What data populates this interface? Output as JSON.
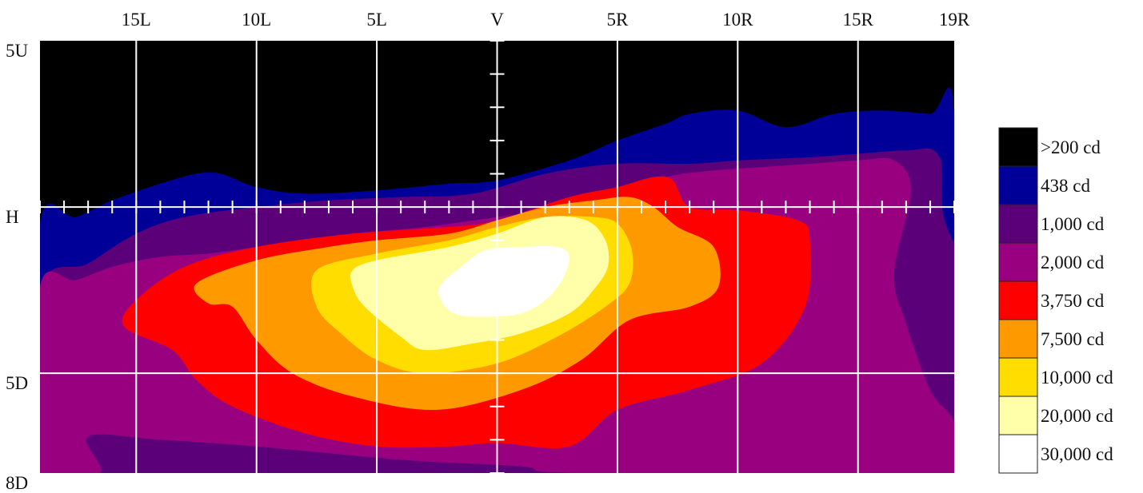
{
  "chart_data": {
    "type": "heatmap",
    "title": "",
    "x_axis": {
      "range": [
        -19,
        19
      ],
      "ticks": [
        {
          "value": -15,
          "label": "15L"
        },
        {
          "value": -10,
          "label": "10L"
        },
        {
          "value": -5,
          "label": "5L"
        },
        {
          "value": 0,
          "label": "V"
        },
        {
          "value": 5,
          "label": "5R"
        },
        {
          "value": 10,
          "label": "10R"
        },
        {
          "value": 15,
          "label": "15R"
        },
        {
          "value": 19,
          "label": "19R"
        }
      ]
    },
    "y_axis": {
      "range": [
        -8,
        5
      ],
      "ticks": [
        {
          "value": 5,
          "label": "5U"
        },
        {
          "value": 0,
          "label": "H"
        },
        {
          "value": -5,
          "label": "5D"
        },
        {
          "value": -8,
          "label": "8D"
        }
      ]
    },
    "grid": true,
    "legend": {
      "placement": "right",
      "entries": [
        {
          "label": ">200 cd",
          "color": "#000000"
        },
        {
          "label": "438 cd",
          "color": "#000099"
        },
        {
          "label": "1,000 cd",
          "color": "#5c007a"
        },
        {
          "label": "2,000 cd",
          "color": "#990080"
        },
        {
          "label": "3,750 cd",
          "color": "#ff0000"
        },
        {
          "label": "7,500 cd",
          "color": "#ff9900"
        },
        {
          "label": "10,000 cd",
          "color": "#ffdd00"
        },
        {
          "label": "20,000 cd",
          "color": "#ffffaa"
        },
        {
          "label": "30,000 cd",
          "color": "#ffffff"
        }
      ]
    },
    "contours": [
      {
        "level": ">200 cd",
        "points": [
          [
            -19,
            5
          ],
          [
            19,
            5
          ],
          [
            19,
            -8
          ],
          [
            -19,
            -8
          ]
        ]
      },
      {
        "level": "438 cd",
        "points": [
          [
            -19,
            -0.5
          ],
          [
            -17.5,
            -0.3
          ],
          [
            -16,
            0.2
          ],
          [
            -14,
            0.7
          ],
          [
            -12.5,
            1.0
          ],
          [
            -11.5,
            1.0
          ],
          [
            -10,
            0.6
          ],
          [
            -8,
            0.4
          ],
          [
            -5,
            0.5
          ],
          [
            -2,
            0.7
          ],
          [
            0,
            0.8
          ],
          [
            3,
            1.4
          ],
          [
            5,
            2.0
          ],
          [
            7,
            2.5
          ],
          [
            8,
            2.8
          ],
          [
            10,
            2.9
          ],
          [
            12,
            2.4
          ],
          [
            14,
            2.8
          ],
          [
            16,
            2.9
          ],
          [
            18,
            2.8
          ],
          [
            19,
            2.8
          ],
          [
            19,
            -8
          ],
          [
            -19,
            -8
          ]
        ]
      },
      {
        "level": "1,000 cd",
        "points": [
          [
            -19,
            -2.5
          ],
          [
            -17,
            -1.7
          ],
          [
            -15,
            -0.8
          ],
          [
            -13,
            -0.3
          ],
          [
            -10,
            0
          ],
          [
            -7,
            0.2
          ],
          [
            -4,
            0.3
          ],
          [
            -1,
            0.4
          ],
          [
            2,
            1.0
          ],
          [
            5,
            1.3
          ],
          [
            8,
            1.3
          ],
          [
            10,
            1.4
          ],
          [
            13,
            1.5
          ],
          [
            15,
            1.6
          ],
          [
            17,
            1.7
          ],
          [
            18.3,
            1.6
          ],
          [
            18.5,
            0
          ],
          [
            18.6,
            -8
          ],
          [
            -19,
            -8
          ]
        ]
      },
      {
        "level": "2,000 cd",
        "points": [
          [
            -19,
            -2.4
          ],
          [
            -17.5,
            -2.2
          ],
          [
            -16,
            -1.8
          ],
          [
            -14,
            -1.5
          ],
          [
            -12,
            -1.4
          ],
          [
            -10,
            -1.2
          ],
          [
            -8,
            -1.0
          ],
          [
            -6,
            -0.8
          ],
          [
            -3,
            -0.6
          ],
          [
            0,
            -0.3
          ],
          [
            3,
            0
          ],
          [
            5,
            0.4
          ],
          [
            7,
            0.9
          ],
          [
            9,
            1.1
          ],
          [
            11,
            1.2
          ],
          [
            13,
            1.3
          ],
          [
            15,
            1.4
          ],
          [
            16.5,
            1.4
          ],
          [
            17.2,
            0.5
          ],
          [
            16.5,
            -2.0
          ],
          [
            17,
            -3.5
          ],
          [
            18,
            -5.5
          ],
          [
            19,
            -6.5
          ],
          [
            19,
            -8
          ],
          [
            3.5,
            -8
          ],
          [
            1,
            -7.8
          ],
          [
            -4,
            -7.6
          ],
          [
            -10,
            -7.2
          ],
          [
            -14,
            -7.0
          ],
          [
            -17,
            -6.9
          ],
          [
            -16.5,
            -8
          ],
          [
            -19,
            -8
          ]
        ]
      },
      {
        "level": "3,750 cd",
        "points": [
          [
            -15.5,
            -3.6
          ],
          [
            -15,
            -2.8
          ],
          [
            -13,
            -1.8
          ],
          [
            -10,
            -1.2
          ],
          [
            -6,
            -0.8
          ],
          [
            -2,
            -0.6
          ],
          [
            0,
            -0.4
          ],
          [
            3,
            0.3
          ],
          [
            5,
            0.6
          ],
          [
            6.5,
            0.9
          ],
          [
            7.3,
            0.8
          ],
          [
            8,
            0
          ],
          [
            10,
            -0.1
          ],
          [
            12.5,
            -0.4
          ],
          [
            13,
            -1.0
          ],
          [
            12.8,
            -3.0
          ],
          [
            11,
            -4.7
          ],
          [
            8,
            -5.5
          ],
          [
            5,
            -6.1
          ],
          [
            3,
            -7.2
          ],
          [
            0,
            -7.1
          ],
          [
            -2,
            -7.2
          ],
          [
            -5,
            -7.2
          ],
          [
            -8,
            -6.8
          ],
          [
            -11,
            -6.0
          ],
          [
            -12.5,
            -5.2
          ],
          [
            -13.5,
            -4.3
          ]
        ]
      },
      {
        "level": "7,500 cd",
        "points": [
          [
            -12.5,
            -2.3
          ],
          [
            -10,
            -1.6
          ],
          [
            -7,
            -1.2
          ],
          [
            -5,
            -1.0
          ],
          [
            -2,
            -0.8
          ],
          [
            0,
            -0.4
          ],
          [
            2,
            0
          ],
          [
            4,
            0.2
          ],
          [
            5.5,
            0.3
          ],
          [
            6.5,
            0
          ],
          [
            7.5,
            -0.6
          ],
          [
            9,
            -1.2
          ],
          [
            9.2,
            -2.4
          ],
          [
            8,
            -3.0
          ],
          [
            5.5,
            -3.4
          ],
          [
            3.5,
            -4.6
          ],
          [
            1,
            -5.5
          ],
          [
            -2.5,
            -6.1
          ],
          [
            -6,
            -5.7
          ],
          [
            -8.5,
            -5.0
          ],
          [
            -10,
            -4.0
          ],
          [
            -11,
            -3.0
          ],
          [
            -12,
            -2.9
          ]
        ]
      },
      {
        "level": "10,000 cd",
        "points": [
          [
            -7.5,
            -1.9
          ],
          [
            -5,
            -1.4
          ],
          [
            -2,
            -1.0
          ],
          [
            0,
            -0.6
          ],
          [
            2,
            -0.3
          ],
          [
            4,
            -0.3
          ],
          [
            5,
            -0.5
          ],
          [
            5.6,
            -1.3
          ],
          [
            5.5,
            -2.3
          ],
          [
            4.5,
            -3.0
          ],
          [
            2.5,
            -3.9
          ],
          [
            0,
            -4.7
          ],
          [
            -3,
            -5.0
          ],
          [
            -5,
            -4.6
          ],
          [
            -6.5,
            -3.8
          ],
          [
            -7.5,
            -3.0
          ]
        ]
      },
      {
        "level": "20,000 cd",
        "points": [
          [
            -6,
            -1.9
          ],
          [
            -5,
            -1.6
          ],
          [
            -2,
            -1.2
          ],
          [
            0,
            -0.8
          ],
          [
            2,
            -0.3
          ],
          [
            3.7,
            -0.4
          ],
          [
            4.5,
            -1.0
          ],
          [
            4.6,
            -1.8
          ],
          [
            4,
            -2.5
          ],
          [
            3,
            -3.2
          ],
          [
            1,
            -3.8
          ],
          [
            -1,
            -4.1
          ],
          [
            -3,
            -4.3
          ],
          [
            -4,
            -3.9
          ],
          [
            -5.5,
            -3.0
          ],
          [
            -6,
            -2.4
          ]
        ]
      },
      {
        "level": "30,000 cd",
        "points": [
          [
            -2.3,
            -2.3
          ],
          [
            -1.5,
            -1.8
          ],
          [
            -0.5,
            -1.3
          ],
          [
            1,
            -1.2
          ],
          [
            2.5,
            -1.2
          ],
          [
            3,
            -1.5
          ],
          [
            2.7,
            -2.2
          ],
          [
            2,
            -2.8
          ],
          [
            1,
            -3.2
          ],
          [
            -0.5,
            -3.3
          ],
          [
            -1.8,
            -3.2
          ],
          [
            -2.4,
            -2.7
          ]
        ]
      }
    ]
  }
}
